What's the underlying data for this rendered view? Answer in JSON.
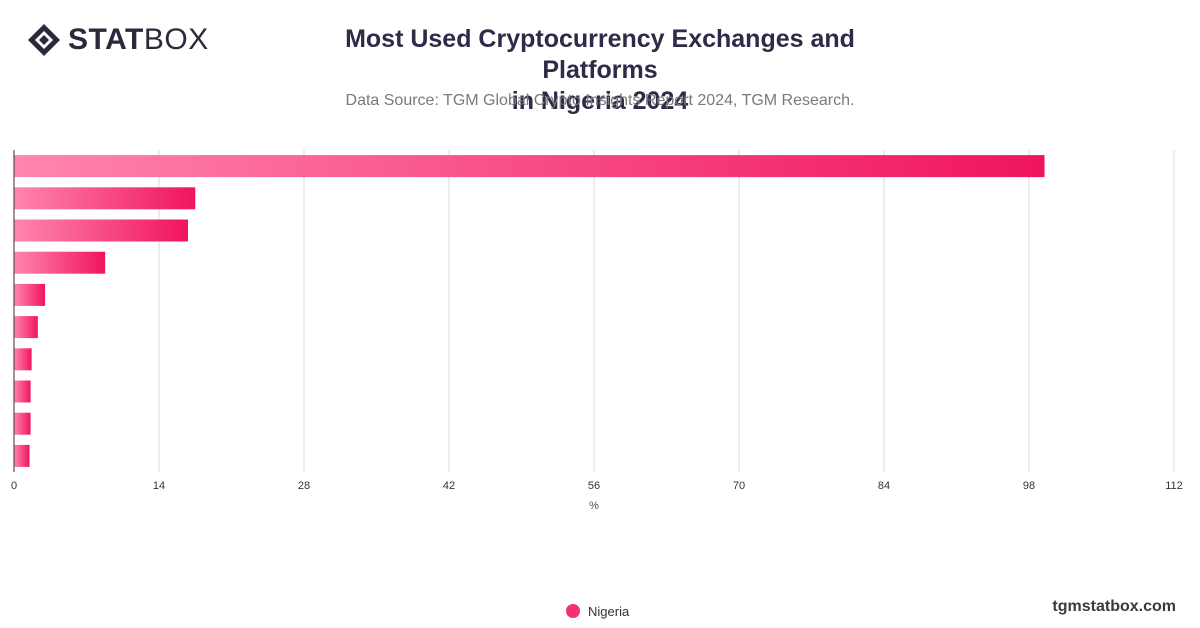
{
  "header": {
    "logo_text_bold": "STAT",
    "logo_text_light": "BOX",
    "title_line1": "Most Used Cryptocurrency Exchanges and Platforms",
    "title_line2": "in Nigeria 2024",
    "subtitle": "Data Source: TGM Global Crypto Insights Report 2024, TGM Research."
  },
  "footer": {
    "site": "tgmstatbox.com"
  },
  "legend": {
    "label": "Nigeria"
  },
  "colors": {
    "bar_start": "#ff86ad",
    "bar_end": "#f0145f",
    "grid": "#d9d9d9",
    "axis": "#333333",
    "text": "#333333"
  },
  "chart_data": {
    "type": "bar",
    "orientation": "horizontal",
    "title": "Most Used Cryptocurrency Exchanges and Platforms in Nigeria 2024",
    "xlabel": "%",
    "ylabel": "",
    "xlim": [
      0,
      112
    ],
    "xticks": [
      0,
      14,
      28,
      42,
      56,
      70,
      84,
      98,
      112
    ],
    "grid": true,
    "legend_position": "bottom-center",
    "series": [
      {
        "name": "Nigeria",
        "values": [
          99.5,
          17.5,
          16.8,
          8.8,
          3.0,
          2.3,
          1.7,
          1.6,
          1.6,
          1.5
        ]
      }
    ]
  }
}
